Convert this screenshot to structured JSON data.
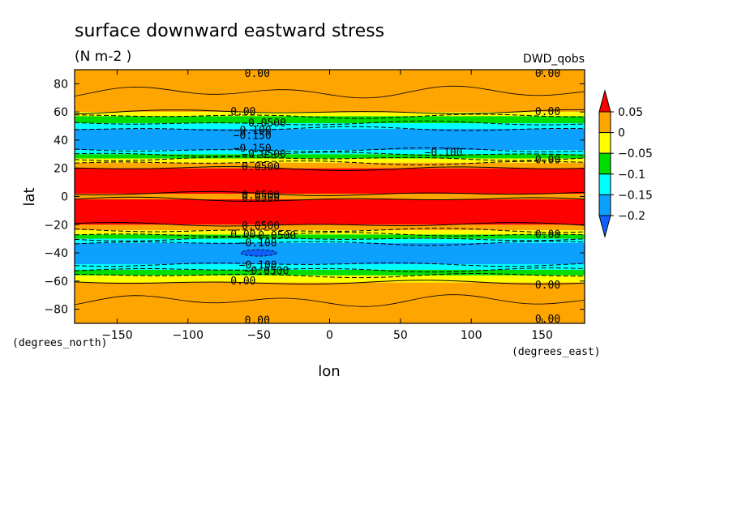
{
  "chart_data": {
    "type": "heatmap",
    "title": "surface downward eastward stress",
    "units": "(N m-2  )",
    "dataset_label": "DWD_qobs",
    "xlabel": "lon",
    "ylabel": "lat",
    "x_units": "(degrees_east)",
    "y_units": "(degrees_north)",
    "xlim": [
      -180,
      180
    ],
    "ylim": [
      -90,
      90
    ],
    "x_ticks": [
      -150,
      -100,
      -50,
      0,
      50,
      100,
      150
    ],
    "y_ticks": [
      -80,
      -60,
      -40,
      -20,
      0,
      20,
      40,
      60,
      80
    ],
    "x_tick_labels": [
      "−150",
      "−100",
      "−50",
      "0",
      "50",
      "100",
      "150"
    ],
    "y_tick_labels": [
      "−80",
      "−60",
      "−40",
      "−20",
      "0",
      "20",
      "40",
      "60",
      "80"
    ],
    "colorbar": {
      "levels": [
        0.05,
        0,
        -0.05,
        -0.1,
        -0.15,
        -0.2
      ],
      "labels": [
        "0.05",
        "0",
        "−0.05",
        "−0.1",
        "−0.15",
        "−0.2"
      ],
      "colors": [
        "#ff0000",
        "#ffa500",
        "#ffff00",
        "#00dd00",
        "#00ffff",
        "#0ca0ff",
        "#1060ff"
      ]
    },
    "zonal_bands": [
      {
        "lat_min": 60,
        "lat_max": 90,
        "value_class": "0 to 0.05",
        "color": "#ffa500"
      },
      {
        "lat_min": 57,
        "lat_max": 60,
        "value_class": "-0.05 to 0",
        "color": "#ffff00"
      },
      {
        "lat_min": 52,
        "lat_max": 57,
        "value_class": "-0.1 to -0.05",
        "color": "#00dd00"
      },
      {
        "lat_min": 48,
        "lat_max": 52,
        "value_class": "-0.15 to -0.1",
        "color": "#00ffff"
      },
      {
        "lat_min": 33,
        "lat_max": 48,
        "value_class": "-0.2 to -0.15",
        "color": "#0ca0ff"
      },
      {
        "lat_min": 30,
        "lat_max": 33,
        "value_class": "-0.15 to -0.1",
        "color": "#00ffff"
      },
      {
        "lat_min": 27,
        "lat_max": 30,
        "value_class": "-0.1 to -0.05",
        "color": "#00dd00"
      },
      {
        "lat_min": 24,
        "lat_max": 27,
        "value_class": "-0.05 to 0",
        "color": "#ffff00"
      },
      {
        "lat_min": 20,
        "lat_max": 24,
        "value_class": "0 to 0.05",
        "color": "#ffa500"
      },
      {
        "lat_min": 2,
        "lat_max": 20,
        "value_class": "> 0.05",
        "color": "#ff0000"
      },
      {
        "lat_min": -2,
        "lat_max": 2,
        "value_class": "0 to 0.05",
        "color": "#ffa500"
      },
      {
        "lat_min": -20,
        "lat_max": -2,
        "value_class": "> 0.05",
        "color": "#ff0000"
      },
      {
        "lat_min": -24,
        "lat_max": -20,
        "value_class": "0 to 0.05",
        "color": "#ffa500"
      },
      {
        "lat_min": -27,
        "lat_max": -24,
        "value_class": "-0.05 to 0",
        "color": "#ffff00"
      },
      {
        "lat_min": -30,
        "lat_max": -27,
        "value_class": "-0.1 to -0.05",
        "color": "#00dd00"
      },
      {
        "lat_min": -33,
        "lat_max": -30,
        "value_class": "-0.15 to -0.1",
        "color": "#00ffff"
      },
      {
        "lat_min": -48,
        "lat_max": -33,
        "value_class": "-0.2 to -0.15",
        "color": "#0ca0ff"
      },
      {
        "lat_min": -52,
        "lat_max": -48,
        "value_class": "-0.15 to -0.1",
        "color": "#00ffff"
      },
      {
        "lat_min": -56,
        "lat_max": -52,
        "value_class": "-0.1 to -0.05",
        "color": "#00dd00"
      },
      {
        "lat_min": -61,
        "lat_max": -56,
        "value_class": "-0.05 to 0",
        "color": "#ffff00"
      },
      {
        "lat_min": -90,
        "lat_max": -61,
        "value_class": "0 to 0.05",
        "color": "#ffa500"
      }
    ],
    "contour_labels": [
      {
        "lon": -60,
        "lat": 87,
        "text": "0.00"
      },
      {
        "lon": 145,
        "lat": 87,
        "text": "0.00"
      },
      {
        "lon": -70,
        "lat": 60,
        "text": "0.00"
      },
      {
        "lon": 145,
        "lat": 60,
        "text": "0.00"
      },
      {
        "lon": -62,
        "lat": 52,
        "text": "−0.0500"
      },
      {
        "lon": -68,
        "lat": 47,
        "text": "−0.100"
      },
      {
        "lon": -68,
        "lat": 43,
        "text": "−0.150"
      },
      {
        "lon": -68,
        "lat": 34,
        "text": "−0.150"
      },
      {
        "lon": -62,
        "lat": 30,
        "text": "−0.0500"
      },
      {
        "lon": 67,
        "lat": 31,
        "text": "−0.100"
      },
      {
        "lon": 145,
        "lat": 26,
        "text": "0.00"
      },
      {
        "lon": -62,
        "lat": 21,
        "text": "0.0500"
      },
      {
        "lon": -62,
        "lat": 1,
        "text": "0.0500"
      },
      {
        "lon": -62,
        "lat": -1,
        "text": "0.0500"
      },
      {
        "lon": -62,
        "lat": -21,
        "text": "0.0500"
      },
      {
        "lon": -70,
        "lat": -27,
        "text": "0.00"
      },
      {
        "lon": 145,
        "lat": -27,
        "text": "0.00"
      },
      {
        "lon": -55,
        "lat": -28,
        "text": "−0.0500"
      },
      {
        "lon": -64,
        "lat": -33,
        "text": "−0.100"
      },
      {
        "lon": -64,
        "lat": -49,
        "text": "−0.100"
      },
      {
        "lon": -60,
        "lat": -53,
        "text": "−0.0500"
      },
      {
        "lon": -70,
        "lat": -60,
        "text": "0.00"
      },
      {
        "lon": 145,
        "lat": -63,
        "text": "0.00"
      },
      {
        "lon": 145,
        "lat": -87,
        "text": "0.00"
      },
      {
        "lon": -60,
        "lat": -88,
        "text": "0.00"
      }
    ]
  }
}
